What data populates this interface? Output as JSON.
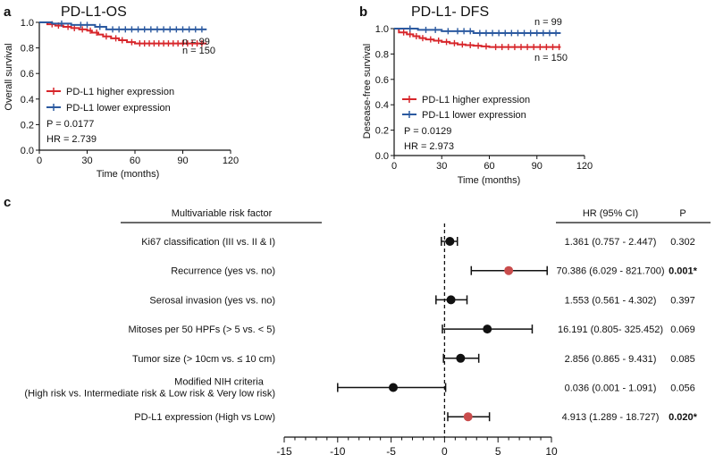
{
  "colors": {
    "red": "#d7262b",
    "blue": "#2c5aa0",
    "hilite": "#c94c4c",
    "black": "#111111"
  },
  "chart_data": [
    {
      "panel": "a",
      "type": "line",
      "title": "PD-L1-OS",
      "xlabel": "Time (months)",
      "ylabel": "Overall survival",
      "xlim": [
        0,
        120
      ],
      "ylim": [
        0,
        1.0
      ],
      "xticks": [
        0,
        30,
        60,
        90,
        120
      ],
      "yticks": [
        0.0,
        0.2,
        0.4,
        0.6,
        0.8,
        1.0
      ],
      "legend": [
        {
          "label": "PD-L1 higher expression",
          "color": "#d7262b"
        },
        {
          "label": "PD-L1 lower expression",
          "color": "#2c5aa0"
        }
      ],
      "n_labels": [
        "n = 99",
        "n = 150"
      ],
      "stats": [
        "P = 0.0177",
        "HR = 2.739"
      ],
      "series": [
        {
          "name": "PD-L1 higher expression",
          "color": "#d7262b",
          "x": [
            0,
            5,
            10,
            15,
            20,
            25,
            30,
            33,
            37,
            40,
            45,
            50,
            55,
            60,
            75,
            105
          ],
          "y": [
            1.0,
            0.985,
            0.975,
            0.965,
            0.955,
            0.945,
            0.935,
            0.92,
            0.905,
            0.89,
            0.875,
            0.86,
            0.845,
            0.835,
            0.835,
            0.835
          ],
          "censor_x": [
            8,
            12,
            18,
            22,
            27,
            32,
            36,
            42,
            48,
            52,
            58,
            63,
            66,
            69,
            72,
            75,
            78,
            81,
            84,
            87,
            90,
            93,
            96,
            99,
            102
          ]
        },
        {
          "name": "PD-L1 lower expression",
          "color": "#2c5aa0",
          "x": [
            0,
            8,
            20,
            35,
            42,
            105
          ],
          "y": [
            1.0,
            0.99,
            0.98,
            0.965,
            0.945,
            0.945
          ],
          "censor_x": [
            14,
            26,
            30,
            38,
            46,
            50,
            54,
            58,
            62,
            66,
            70,
            74,
            78,
            82,
            86,
            90,
            94,
            98,
            102
          ]
        }
      ]
    },
    {
      "panel": "b",
      "type": "line",
      "title": "PD-L1- DFS",
      "xlabel": "Time (months)",
      "ylabel": "Desease-free survival",
      "xlim": [
        0,
        120
      ],
      "ylim": [
        0,
        1.0
      ],
      "xticks": [
        0,
        30,
        60,
        90,
        120
      ],
      "yticks": [
        0.0,
        0.2,
        0.4,
        0.6,
        0.8,
        1.0
      ],
      "legend": [
        {
          "label": "PD-L1 higher expression",
          "color": "#d7262b"
        },
        {
          "label": "PD-L1 lower expression",
          "color": "#2c5aa0"
        }
      ],
      "n_labels": [
        "n = 99",
        "n = 150"
      ],
      "stats": [
        "P = 0.0129",
        "HR = 2.973"
      ],
      "series": [
        {
          "name": "PD-L1 higher expression",
          "color": "#d7262b",
          "x": [
            0,
            3,
            8,
            12,
            16,
            20,
            25,
            30,
            35,
            40,
            45,
            50,
            55,
            60,
            105
          ],
          "y": [
            1.0,
            0.97,
            0.955,
            0.94,
            0.925,
            0.915,
            0.905,
            0.895,
            0.885,
            0.875,
            0.87,
            0.865,
            0.86,
            0.855,
            0.855
          ],
          "censor_x": [
            6,
            10,
            14,
            18,
            23,
            28,
            33,
            38,
            43,
            48,
            53,
            58,
            64,
            68,
            72,
            76,
            80,
            84,
            88,
            92,
            96,
            100,
            104
          ]
        },
        {
          "name": "PD-L1 lower expression",
          "color": "#2c5aa0",
          "x": [
            0,
            15,
            30,
            50,
            105
          ],
          "y": [
            1.0,
            0.99,
            0.98,
            0.965,
            0.965
          ],
          "censor_x": [
            10,
            20,
            26,
            34,
            40,
            44,
            48,
            54,
            58,
            62,
            66,
            70,
            74,
            78,
            82,
            86,
            90,
            94,
            98,
            102
          ]
        }
      ]
    },
    {
      "panel": "c",
      "type": "scatter",
      "subtype": "forest",
      "header_factor": "Multivariable risk factor",
      "header_hr": "HR (95% CI)",
      "header_p": "P",
      "xlim": [
        -15,
        10
      ],
      "xticks": [
        -15,
        -10,
        -5,
        0,
        5,
        10
      ],
      "reference_line": 0,
      "rows": [
        {
          "factor": [
            "Ki67 classification (III vs. II & I)"
          ],
          "hr_text": "1.361 (0.757  - 2.447)",
          "p": "0.302",
          "sig": false,
          "point": 0.5,
          "lo": -0.3,
          "hi": 1.2
        },
        {
          "factor": [
            "Recurrence (yes vs. no)"
          ],
          "hr_text": "70.386 (6.029 - 821.700)",
          "p": "0.001*",
          "sig": true,
          "point": 6.0,
          "lo": 2.5,
          "hi": 9.6
        },
        {
          "factor": [
            "Serosal invasion (yes vs. no)"
          ],
          "hr_text": "1.553 (0.561 - 4.302)",
          "p": "0.397",
          "sig": false,
          "point": 0.6,
          "lo": -0.8,
          "hi": 2.1
        },
        {
          "factor": [
            "Mitoses per 50 HPFs (> 5 vs. < 5)"
          ],
          "hr_text": "16.191 (0.805- 325.452)",
          "p": "0.069",
          "sig": false,
          "point": 4.0,
          "lo": -0.2,
          "hi": 8.2
        },
        {
          "factor": [
            "Tumor size (> 10cm vs. ≤ 10 cm)"
          ],
          "hr_text": "2.856 (0.865 - 9.431)",
          "p": "0.085",
          "sig": false,
          "point": 1.5,
          "lo": -0.1,
          "hi": 3.2
        },
        {
          "factor": [
            "Modified NIH criteria",
            "(High risk vs. Intermediate risk & Low risk & Very low risk)"
          ],
          "hr_text": "0.036 (0.001 - 1.091)",
          "p": "0.056",
          "sig": false,
          "point": -4.8,
          "lo": -10.0,
          "hi": 0.1
        },
        {
          "factor": [
            "PD-L1 expression (High vs Low)"
          ],
          "hr_text": "4.913 (1.289 - 18.727)",
          "p": "0.020*",
          "sig": true,
          "point": 2.2,
          "lo": 0.3,
          "hi": 4.2
        }
      ]
    }
  ]
}
